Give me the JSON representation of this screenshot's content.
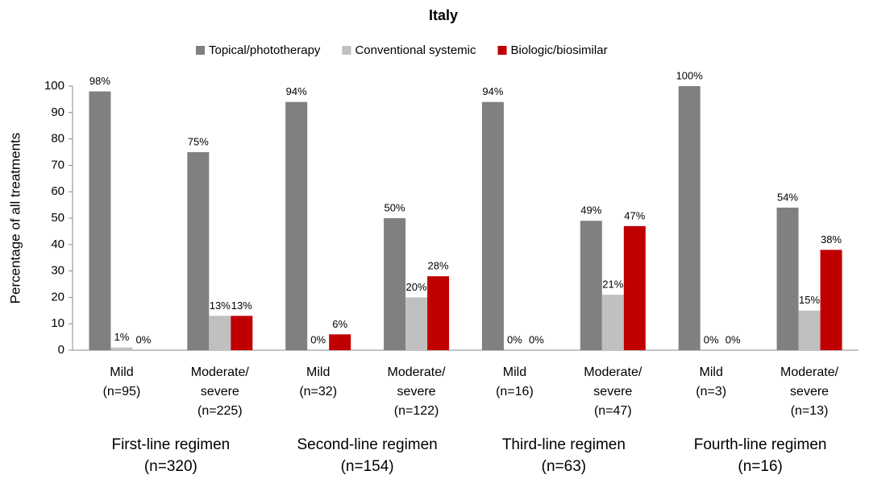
{
  "chart_data": {
    "type": "bar",
    "title": "Italy",
    "ylabel": "Percentage of all treatments",
    "categories": [
      [
        "Mild",
        "(n=95)"
      ],
      [
        "Moderate/",
        "severe",
        "(n=225)"
      ],
      [
        "Mild",
        "(n=32)"
      ],
      [
        "Moderate/",
        "severe",
        "(n=122)"
      ],
      [
        "Mild",
        "(n=16)"
      ],
      [
        "Moderate/",
        "severe",
        "(n=47)"
      ],
      [
        "Mild",
        "(n=3)"
      ],
      [
        "Moderate/",
        "severe",
        "(n=13)"
      ]
    ],
    "groups": [
      [
        "First-line regimen",
        "(n=320)"
      ],
      [
        "Second-line regimen",
        "(n=154)"
      ],
      [
        "Third-line regimen",
        "(n=63)"
      ],
      [
        "Fourth-line regimen",
        "(n=16)"
      ]
    ],
    "series": [
      {
        "name": "Topical/phototherapy",
        "color": "#808080",
        "values": [
          98,
          75,
          94,
          50,
          94,
          49,
          100,
          54
        ],
        "value_labels": [
          "98%",
          "75%",
          "94%",
          "50%",
          "94%",
          "49%",
          "100%",
          "54%"
        ]
      },
      {
        "name": "Conventional systemic",
        "color": "#c0c0c0",
        "values": [
          1,
          13,
          0,
          20,
          0,
          21,
          0,
          15
        ],
        "value_labels": [
          "1%",
          "13%",
          "0%",
          "20%",
          "0%",
          "21%",
          "0%",
          "15%"
        ]
      },
      {
        "name": "Biologic/biosimilar",
        "color": "#c00000",
        "values": [
          0,
          13,
          6,
          28,
          0,
          47,
          0,
          38
        ],
        "value_labels": [
          "0%",
          "13%",
          "6%",
          "28%",
          "0%",
          "47%",
          "0%",
          "38%"
        ]
      }
    ],
    "ylim": [
      0,
      100
    ],
    "yticks": [
      0,
      10,
      20,
      30,
      40,
      50,
      60,
      70,
      80,
      90,
      100
    ],
    "legend": "top"
  }
}
